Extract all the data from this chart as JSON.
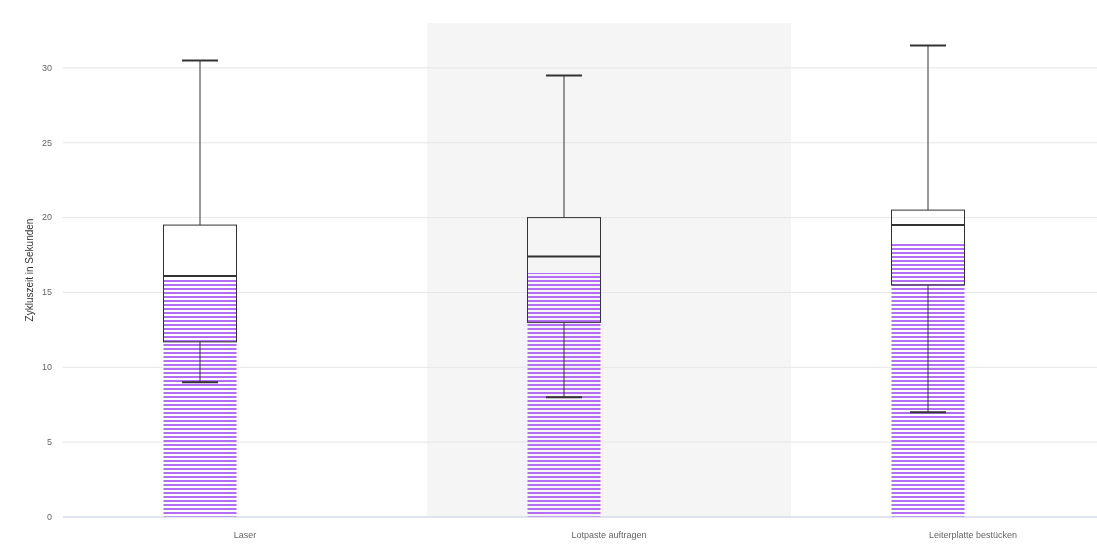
{
  "chart_data": {
    "type": "box",
    "ylabel": "Zykluszeit in Sekunden",
    "categories": [
      "Laser",
      "Lotpaste auftragen",
      "Leiterplatte bestücken"
    ],
    "series": [
      {
        "type": "bar",
        "color": "#b36ef5",
        "values": [
          15.9,
          16.3,
          18.3
        ]
      },
      {
        "color": "#333333",
        "boxes": [
          {
            "low": 9.0,
            "q1": 11.7,
            "median": 16.1,
            "q3": 19.5,
            "high": 30.5
          },
          {
            "low": 8.0,
            "q1": 13.0,
            "median": 17.4,
            "q3": 20.0,
            "high": 29.5
          },
          {
            "low": 7.0,
            "q1": 15.5,
            "median": 19.5,
            "q3": 20.5,
            "high": 31.5
          }
        ]
      }
    ],
    "bands": [
      {
        "axis": "x",
        "from": "Lotpaste auftragen",
        "to": "Lotpaste auftragen",
        "color": "#f5f5f5"
      }
    ],
    "ylim": [
      0,
      33
    ],
    "yticks": [
      0,
      5,
      10,
      15,
      20,
      25,
      30
    ],
    "grid": "y"
  }
}
